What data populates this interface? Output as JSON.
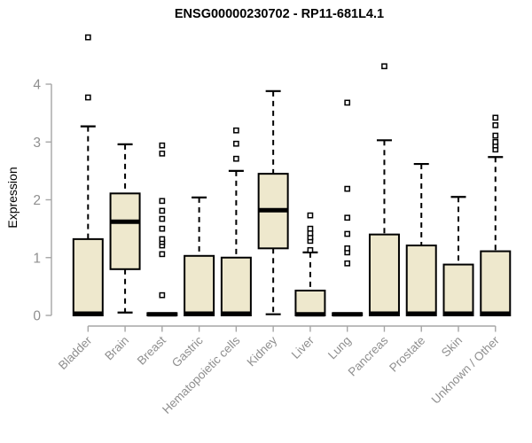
{
  "chart_data": {
    "type": "boxplot",
    "title": "ENSG00000230702 - RP11-681L4.1",
    "ylabel": "Expression",
    "xlabel": "",
    "ylim": [
      0,
      4
    ],
    "yticks": [
      0,
      1,
      2,
      3,
      4
    ],
    "grid": false,
    "legend": false,
    "categories": [
      "Bladder",
      "Brain",
      "Breast",
      "Gastric",
      "Hematopoietic cells",
      "Kidney",
      "Liver",
      "Lung",
      "Pancreas",
      "Prostate",
      "Skin",
      "Unknown / Other"
    ],
    "series": [
      {
        "name": "Bladder",
        "whisker_low": 0,
        "q1": 0,
        "median": 0.03,
        "q3": 1.32,
        "whisker_high": 3.27,
        "outliers": [
          3.77,
          4.81
        ]
      },
      {
        "name": "Brain",
        "whisker_low": 0.05,
        "q1": 0.8,
        "median": 1.62,
        "q3": 2.11,
        "whisker_high": 2.96,
        "outliers": []
      },
      {
        "name": "Breast",
        "whisker_low": 0,
        "q1": 0,
        "median": 0.02,
        "q3": 0.04,
        "whisker_high": 0.04,
        "outliers": [
          0.35,
          1.06,
          1.21,
          1.27,
          1.32,
          1.5,
          1.67,
          1.81,
          1.98,
          2.8,
          2.94
        ]
      },
      {
        "name": "Gastric",
        "whisker_low": 0,
        "q1": 0,
        "median": 0.03,
        "q3": 1.03,
        "whisker_high": 2.04,
        "outliers": []
      },
      {
        "name": "Hematopoietic cells",
        "whisker_low": 0,
        "q1": 0,
        "median": 0.03,
        "q3": 1.0,
        "whisker_high": 2.5,
        "outliers": [
          2.71,
          2.97,
          3.2
        ]
      },
      {
        "name": "Kidney",
        "whisker_low": 0.02,
        "q1": 1.16,
        "median": 1.82,
        "q3": 2.45,
        "whisker_high": 3.88,
        "outliers": []
      },
      {
        "name": "Liver",
        "whisker_low": 0,
        "q1": 0,
        "median": 0.02,
        "q3": 0.43,
        "whisker_high": 1.09,
        "outliers": [
          1.13,
          1.29,
          1.35,
          1.42,
          1.5,
          1.73
        ]
      },
      {
        "name": "Lung",
        "whisker_low": 0,
        "q1": 0,
        "median": 0.02,
        "q3": 0.04,
        "whisker_high": 0.04,
        "outliers": [
          0.9,
          1.09,
          1.16,
          1.41,
          1.69,
          2.19,
          3.68
        ]
      },
      {
        "name": "Pancreas",
        "whisker_low": 0,
        "q1": 0,
        "median": 0.03,
        "q3": 1.4,
        "whisker_high": 3.03,
        "outliers": [
          4.31
        ]
      },
      {
        "name": "Prostate",
        "whisker_low": 0,
        "q1": 0,
        "median": 0.03,
        "q3": 1.21,
        "whisker_high": 2.62,
        "outliers": []
      },
      {
        "name": "Skin",
        "whisker_low": 0,
        "q1": 0,
        "median": 0.03,
        "q3": 0.88,
        "whisker_high": 2.05,
        "outliers": []
      },
      {
        "name": "Unknown / Other",
        "whisker_low": 0,
        "q1": 0,
        "median": 0.03,
        "q3": 1.11,
        "whisker_high": 2.74,
        "outliers": [
          2.87,
          2.94,
          3.0,
          3.11,
          3.29,
          3.42
        ]
      }
    ],
    "colors": {
      "box_fill": "#EEE8CD",
      "box_border": "#000000",
      "median": "#000000",
      "whisker": "#000000",
      "outlier_fill": "#ffffff",
      "axis_line": "#A6A6A6",
      "tick_label": "#8F8F8F",
      "title": "#000000"
    }
  }
}
